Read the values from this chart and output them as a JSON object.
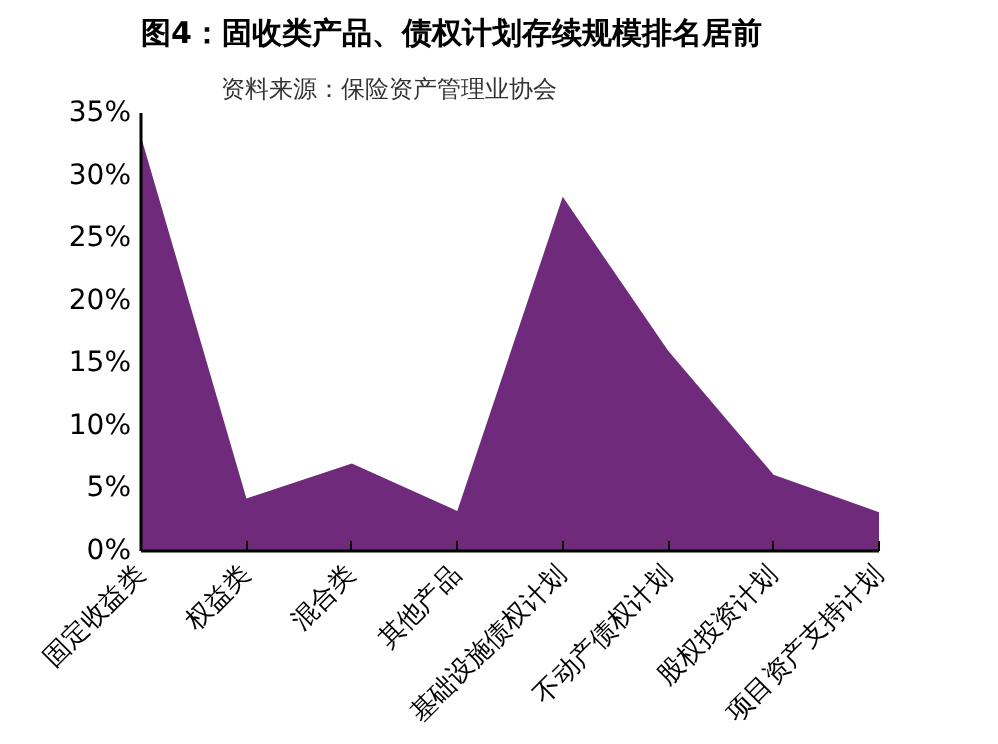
{
  "chart_data": {
    "type": "area",
    "title": "图4：固收类产品、债权计划存续规模排名居前",
    "annotations": [
      "资料来源：保险资产管理业协会"
    ],
    "categories": [
      "固定收益类",
      "权益类",
      "混合类",
      "其他产品",
      "基础设施债权计划",
      "不动产债权计划",
      "股权投资计划",
      "项目资产支持计划"
    ],
    "series": [
      {
        "color": "#6f2a7b",
        "values": [
          33.1,
          4.2,
          7.0,
          3.2,
          28.3,
          16.0,
          6.1,
          3.1
        ]
      }
    ],
    "ylim": [
      0,
      35
    ],
    "yticks": [
      {
        "value": 0,
        "label": "0%"
      },
      {
        "value": 5,
        "label": "5%"
      },
      {
        "value": 10,
        "label": "10%"
      },
      {
        "value": 15,
        "label": "15%"
      },
      {
        "value": 20,
        "label": "20%"
      },
      {
        "value": 25,
        "label": "25%"
      },
      {
        "value": 30,
        "label": "30%"
      },
      {
        "value": 35,
        "label": "35%"
      }
    ],
    "grid": false
  }
}
